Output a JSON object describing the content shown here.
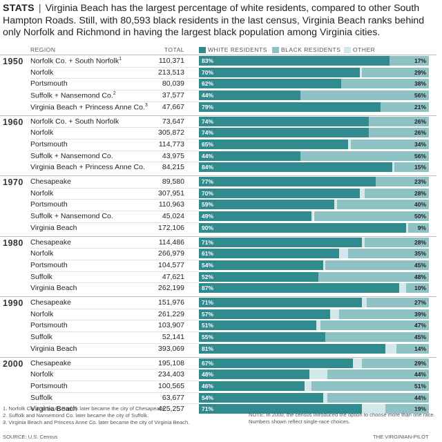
{
  "header": {
    "kicker": "STATS",
    "separator": "|",
    "text": "Virginia Beach has the largest percentage of white residents, compared to other South Hampton Roads. Still, with 80,593 black residents in the last census, Virginia Beach ranks behind only Norfolk and Richmond in having the largest black population among Virginia cities."
  },
  "columns": {
    "region": "REGION",
    "total": "TOTAL"
  },
  "legend": [
    {
      "key": "white",
      "label": "WHITE RESIDENTS",
      "color": "#2f8b8d"
    },
    {
      "key": "black",
      "label": "BLACK RESIDENTS",
      "color": "#8fc2c4"
    },
    {
      "key": "other",
      "label": "OTHER",
      "color": "#d5e8e9"
    }
  ],
  "chart_data": {
    "type": "bar",
    "subtype": "stacked-horizontal-100",
    "series_names": [
      "White residents",
      "Black residents",
      "Other"
    ],
    "groups": [
      {
        "decade": "1950",
        "rows": [
          {
            "region": "Norfolk Co. + South Norfolk",
            "note": "1",
            "total": "110,371",
            "white": 83,
            "black": 17,
            "other": 0
          },
          {
            "region": "Norfolk",
            "note": "",
            "total": "213,513",
            "white": 70,
            "black": 29,
            "other": 1
          },
          {
            "region": "Portsmouth",
            "note": "",
            "total": "80,039",
            "white": 62,
            "black": 38,
            "other": 0
          },
          {
            "region": "Suffolk + Nansemond Co.",
            "note": "2",
            "total": "37,577",
            "white": 44,
            "black": 56,
            "other": 0
          },
          {
            "region": "Virginia Beach + Princess Anne Co.",
            "note": "3",
            "total": "47,667",
            "white": 79,
            "black": 21,
            "other": 0
          }
        ]
      },
      {
        "decade": "1960",
        "rows": [
          {
            "region": "Norfolk Co. + South Norfolk",
            "note": "",
            "total": "73,647",
            "white": 74,
            "black": 26,
            "other": 0
          },
          {
            "region": "Norfolk",
            "note": "",
            "total": "305,872",
            "white": 74,
            "black": 26,
            "other": 0
          },
          {
            "region": "Portsmouth",
            "note": "",
            "total": "114,773",
            "white": 65,
            "black": 34,
            "other": 1
          },
          {
            "region": "Suffolk + Nansemond Co.",
            "note": "",
            "total": "43,975",
            "white": 44,
            "black": 56,
            "other": 0
          },
          {
            "region": "Virginia Beach + Princess Anne Co.",
            "note": "",
            "total": "84,215",
            "white": 84,
            "black": 15,
            "other": 1
          }
        ]
      },
      {
        "decade": "1970",
        "rows": [
          {
            "region": "Chesapeake",
            "note": "",
            "total": "89,580",
            "white": 77,
            "black": 23,
            "other": 0
          },
          {
            "region": "Norfolk",
            "note": "",
            "total": "307,951",
            "white": 70,
            "black": 28,
            "other": 2
          },
          {
            "region": "Portsmouth",
            "note": "",
            "total": "110,963",
            "white": 59,
            "black": 40,
            "other": 1
          },
          {
            "region": "Suffolk + Nansemond Co.",
            "note": "",
            "total": "45,024",
            "white": 49,
            "black": 50,
            "other": 1
          },
          {
            "region": "Virginia Beach",
            "note": "",
            "total": "172,106",
            "white": 90,
            "black": 9,
            "other": 1
          }
        ]
      },
      {
        "decade": "1980",
        "rows": [
          {
            "region": "Chesapeake",
            "note": "",
            "total": "114,486",
            "white": 71,
            "black": 28,
            "other": 1
          },
          {
            "region": "Norfolk",
            "note": "",
            "total": "266,979",
            "white": 61,
            "black": 35,
            "other": 4
          },
          {
            "region": "Portsmouth",
            "note": "",
            "total": "104,577",
            "white": 54,
            "black": 45,
            "other": 1
          },
          {
            "region": "Suffolk",
            "note": "",
            "total": "47,621",
            "white": 52,
            "black": 48,
            "other": 0
          },
          {
            "region": "Virginia Beach",
            "note": "",
            "total": "262,199",
            "white": 87,
            "black": 10,
            "other": 3
          }
        ]
      },
      {
        "decade": "1990",
        "rows": [
          {
            "region": "Chesapeake",
            "note": "",
            "total": "151,976",
            "white": 71,
            "black": 27,
            "other": 2
          },
          {
            "region": "Norfolk",
            "note": "",
            "total": "261,229",
            "white": 57,
            "black": 39,
            "other": 4
          },
          {
            "region": "Portsmouth",
            "note": "",
            "total": "103,907",
            "white": 51,
            "black": 47,
            "other": 2
          },
          {
            "region": "Suffolk",
            "note": "",
            "total": "52,141",
            "white": 55,
            "black": 45,
            "other": 0
          },
          {
            "region": "Virginia Beach",
            "note": "",
            "total": "393,069",
            "white": 81,
            "black": 14,
            "other": 5
          }
        ]
      },
      {
        "decade": "2000",
        "rows": [
          {
            "region": "Chesapeake",
            "note": "",
            "total": "195,108",
            "white": 67,
            "black": 29,
            "other": 4
          },
          {
            "region": "Norfolk",
            "note": "",
            "total": "234,403",
            "white": 48,
            "black": 44,
            "other": 8
          },
          {
            "region": "Portsmouth",
            "note": "",
            "total": "100,565",
            "white": 46,
            "black": 51,
            "other": 3
          },
          {
            "region": "Suffolk",
            "note": "",
            "total": "63,677",
            "white": 54,
            "black": 44,
            "other": 2
          },
          {
            "region": "Virginia Beach",
            "note": "",
            "total": "425,257",
            "white": 71,
            "black": 19,
            "other": 10
          }
        ]
      }
    ]
  },
  "footnotes": [
    "1. Norfolk Co. and South Norfolk later became the city of Chesapeake.",
    "2. Suffolk and Nansemond Co. later became the city of Suffolk.",
    "3. Virginia Beach and Princess Anne Co. later became the city of Virginia Beach."
  ],
  "note": "NOTE: In 2000, the census introduced the option to choose more than one race. Numbers shown reflect single-race choices.",
  "source": "SOURCE: U.S. Census",
  "credit": "THE VIRGINIAN-PILOT"
}
